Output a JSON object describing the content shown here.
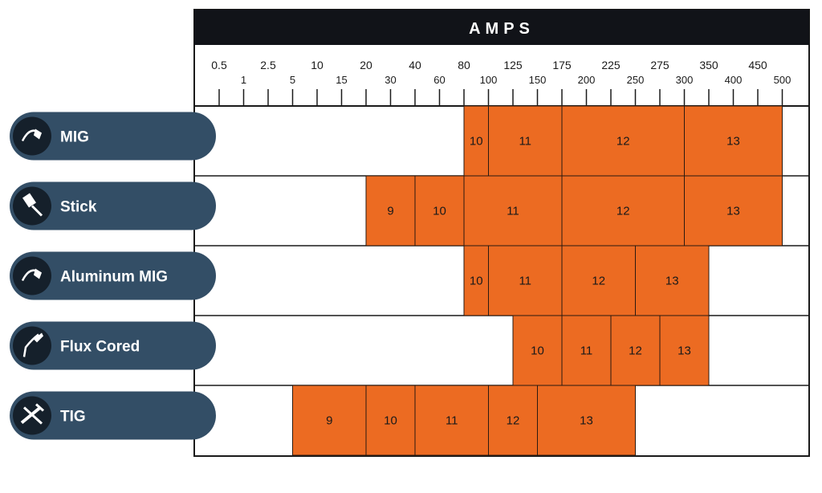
{
  "chart_data": {
    "type": "table",
    "title": "AMPS",
    "tick_labels": [
      "0.5",
      "1",
      "2.5",
      "5",
      "10",
      "15",
      "20",
      "30",
      "40",
      "60",
      "80",
      "100",
      "125",
      "150",
      "175",
      "200",
      "225",
      "250",
      "275",
      "300",
      "350",
      "400",
      "450",
      "500"
    ],
    "rows": [
      {
        "process": "MIG",
        "icon": "mig-torch-icon",
        "cells": [
          {
            "from": "80",
            "to": "100",
            "shade": "10"
          },
          {
            "from": "100",
            "to": "175",
            "shade": "11"
          },
          {
            "from": "175",
            "to": "300",
            "shade": "12"
          },
          {
            "from": "300",
            "to": "500",
            "shade": "13"
          }
        ]
      },
      {
        "process": "Stick",
        "icon": "stick-electrode-icon",
        "cells": [
          {
            "from": "20",
            "to": "40",
            "shade": "9"
          },
          {
            "from": "40",
            "to": "80",
            "shade": "10"
          },
          {
            "from": "80",
            "to": "175",
            "shade": "11"
          },
          {
            "from": "175",
            "to": "300",
            "shade": "12"
          },
          {
            "from": "300",
            "to": "500",
            "shade": "13"
          }
        ]
      },
      {
        "process": "Aluminum MIG",
        "icon": "aluminum-mig-torch-icon",
        "cells": [
          {
            "from": "80",
            "to": "100",
            "shade": "10"
          },
          {
            "from": "100",
            "to": "175",
            "shade": "11"
          },
          {
            "from": "175",
            "to": "250",
            "shade": "12"
          },
          {
            "from": "250",
            "to": "350",
            "shade": "13"
          }
        ]
      },
      {
        "process": "Flux Cored",
        "icon": "flux-cored-torch-icon",
        "cells": [
          {
            "from": "125",
            "to": "175",
            "shade": "10"
          },
          {
            "from": "175",
            "to": "225",
            "shade": "11"
          },
          {
            "from": "225",
            "to": "275",
            "shade": "12"
          },
          {
            "from": "275",
            "to": "350",
            "shade": "13"
          }
        ]
      },
      {
        "process": "TIG",
        "icon": "tig-torch-icon",
        "cells": [
          {
            "from": "5",
            "to": "20",
            "shade": "9"
          },
          {
            "from": "20",
            "to": "40",
            "shade": "10"
          },
          {
            "from": "40",
            "to": "100",
            "shade": "11"
          },
          {
            "from": "100",
            "to": "150",
            "shade": "12"
          },
          {
            "from": "150",
            "to": "250",
            "shade": "13"
          }
        ]
      }
    ]
  },
  "colors": {
    "header": "#111318",
    "cell_fill": "#EC6B22",
    "process_pill": "#334E66",
    "icon_circle": "#15202B",
    "grid": "#1a1a1a"
  }
}
